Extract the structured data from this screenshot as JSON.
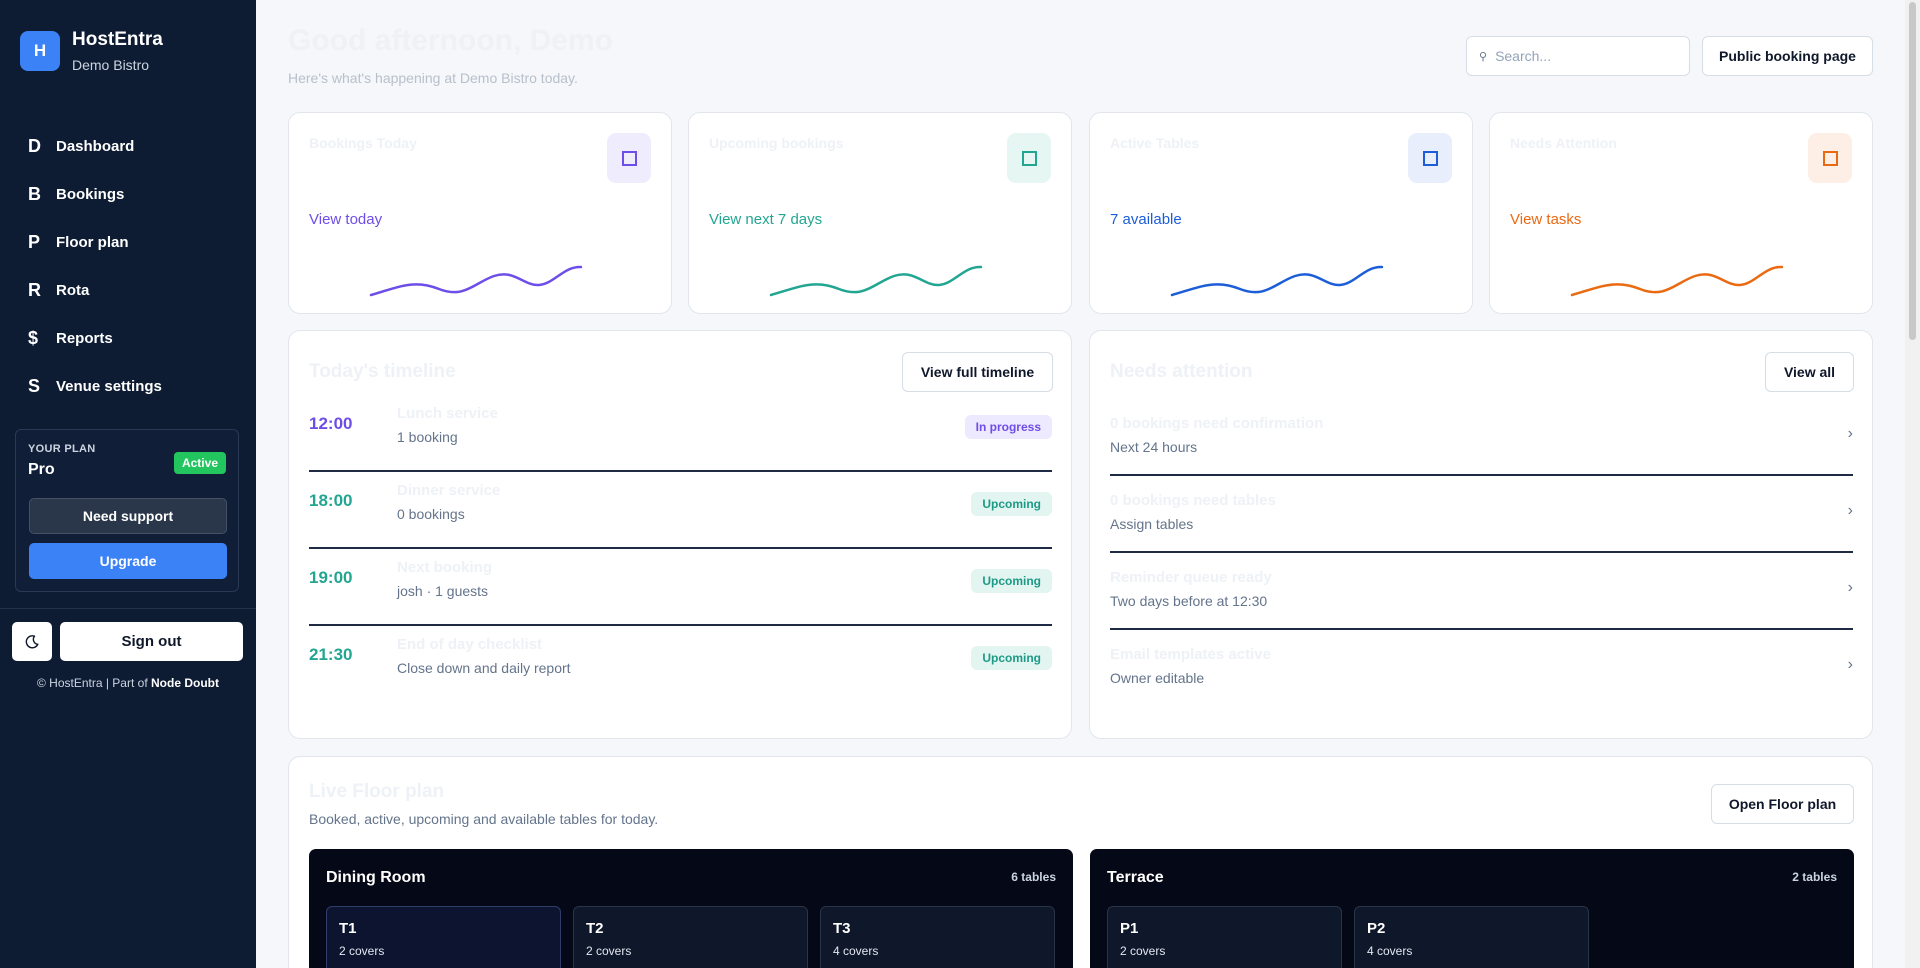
{
  "brand": {
    "logo_letter": "H",
    "name": "HostEntra",
    "venue": "Demo Bistro"
  },
  "nav": [
    {
      "letter": "D",
      "label": "Dashboard"
    },
    {
      "letter": "B",
      "label": "Bookings"
    },
    {
      "letter": "P",
      "label": "Floor plan"
    },
    {
      "letter": "R",
      "label": "Rota"
    },
    {
      "letter": "$",
      "label": "Reports"
    },
    {
      "letter": "S",
      "label": "Venue settings"
    }
  ],
  "plan": {
    "caption": "YOUR PLAN",
    "name": "Pro",
    "badge": "Active",
    "support_label": "Need support",
    "upgrade_label": "Upgrade"
  },
  "sidebar_footer": {
    "theme_icon": "moon-icon",
    "signout_label": "Sign out",
    "copyright": "© HostEntra | Part of",
    "company": "Node Doubt"
  },
  "header": {
    "greeting": "Good afternoon, Demo",
    "subtitle": "Here's what's happening at Demo Bistro today.",
    "public_booking_label": "Public booking page"
  },
  "search": {
    "placeholder": "Search...",
    "icon": "search-icon"
  },
  "stats": [
    {
      "title": "Bookings Today",
      "link": "View today",
      "color": "#6d4ee8",
      "icon_bg": "#efecfd"
    },
    {
      "title": "Upcoming bookings",
      "link": "View next 7 days",
      "color": "#22a691",
      "icon_bg": "#e6f6f3"
    },
    {
      "title": "Active Tables",
      "link": "7 available",
      "color": "#1d5ed8",
      "icon_bg": "#e8eefc"
    },
    {
      "title": "Needs Attention",
      "link": "View tasks",
      "color": "#ea6a12",
      "icon_bg": "#fdefe6"
    }
  ],
  "timeline": {
    "title": "Today's timeline",
    "button": "View full timeline",
    "rows": [
      {
        "time": "12:00",
        "name": "Lunch service",
        "detail": "1 booking",
        "status": "In progress",
        "time_color": "#6d4ee8",
        "badge_bg": "#ede9fe",
        "badge_color": "#6d4ee8"
      },
      {
        "time": "18:00",
        "name": "Dinner service",
        "detail": "0 bookings",
        "status": "Upcoming",
        "time_color": "#22a691",
        "badge_bg": "#e3f5f1",
        "badge_color": "#1d9a86"
      },
      {
        "time": "19:00",
        "name": "Next booking",
        "detail": "josh · 1 guests",
        "status": "Upcoming",
        "time_color": "#22a691",
        "badge_bg": "#e3f5f1",
        "badge_color": "#1d9a86"
      },
      {
        "time": "21:30",
        "name": "End of day checklist",
        "detail": "Close down and daily report",
        "status": "Upcoming",
        "time_color": "#22a691",
        "badge_bg": "#e3f5f1",
        "badge_color": "#1d9a86"
      }
    ]
  },
  "attention": {
    "title": "Needs attention",
    "button": "View all",
    "items": [
      {
        "title": "0 bookings need confirmation",
        "detail": "Next 24 hours"
      },
      {
        "title": "0 bookings need tables",
        "detail": "Assign tables"
      },
      {
        "title": "Reminder queue ready",
        "detail": "Two days before at 12:30"
      },
      {
        "title": "Email templates active",
        "detail": "Owner editable"
      }
    ]
  },
  "floor": {
    "title": "Live Floor plan",
    "subtitle": "Booked, active, upcoming and available tables for today.",
    "button": "Open Floor plan",
    "rooms": [
      {
        "name": "Dining Room",
        "count": "6 tables",
        "tables": [
          {
            "name": "T1",
            "covers": "2 covers"
          },
          {
            "name": "T2",
            "covers": "2 covers"
          },
          {
            "name": "T3",
            "covers": "4 covers"
          }
        ]
      },
      {
        "name": "Terrace",
        "count": "2 tables",
        "tables": [
          {
            "name": "P1",
            "covers": "2 covers"
          },
          {
            "name": "P2",
            "covers": "4 covers"
          }
        ]
      }
    ]
  }
}
